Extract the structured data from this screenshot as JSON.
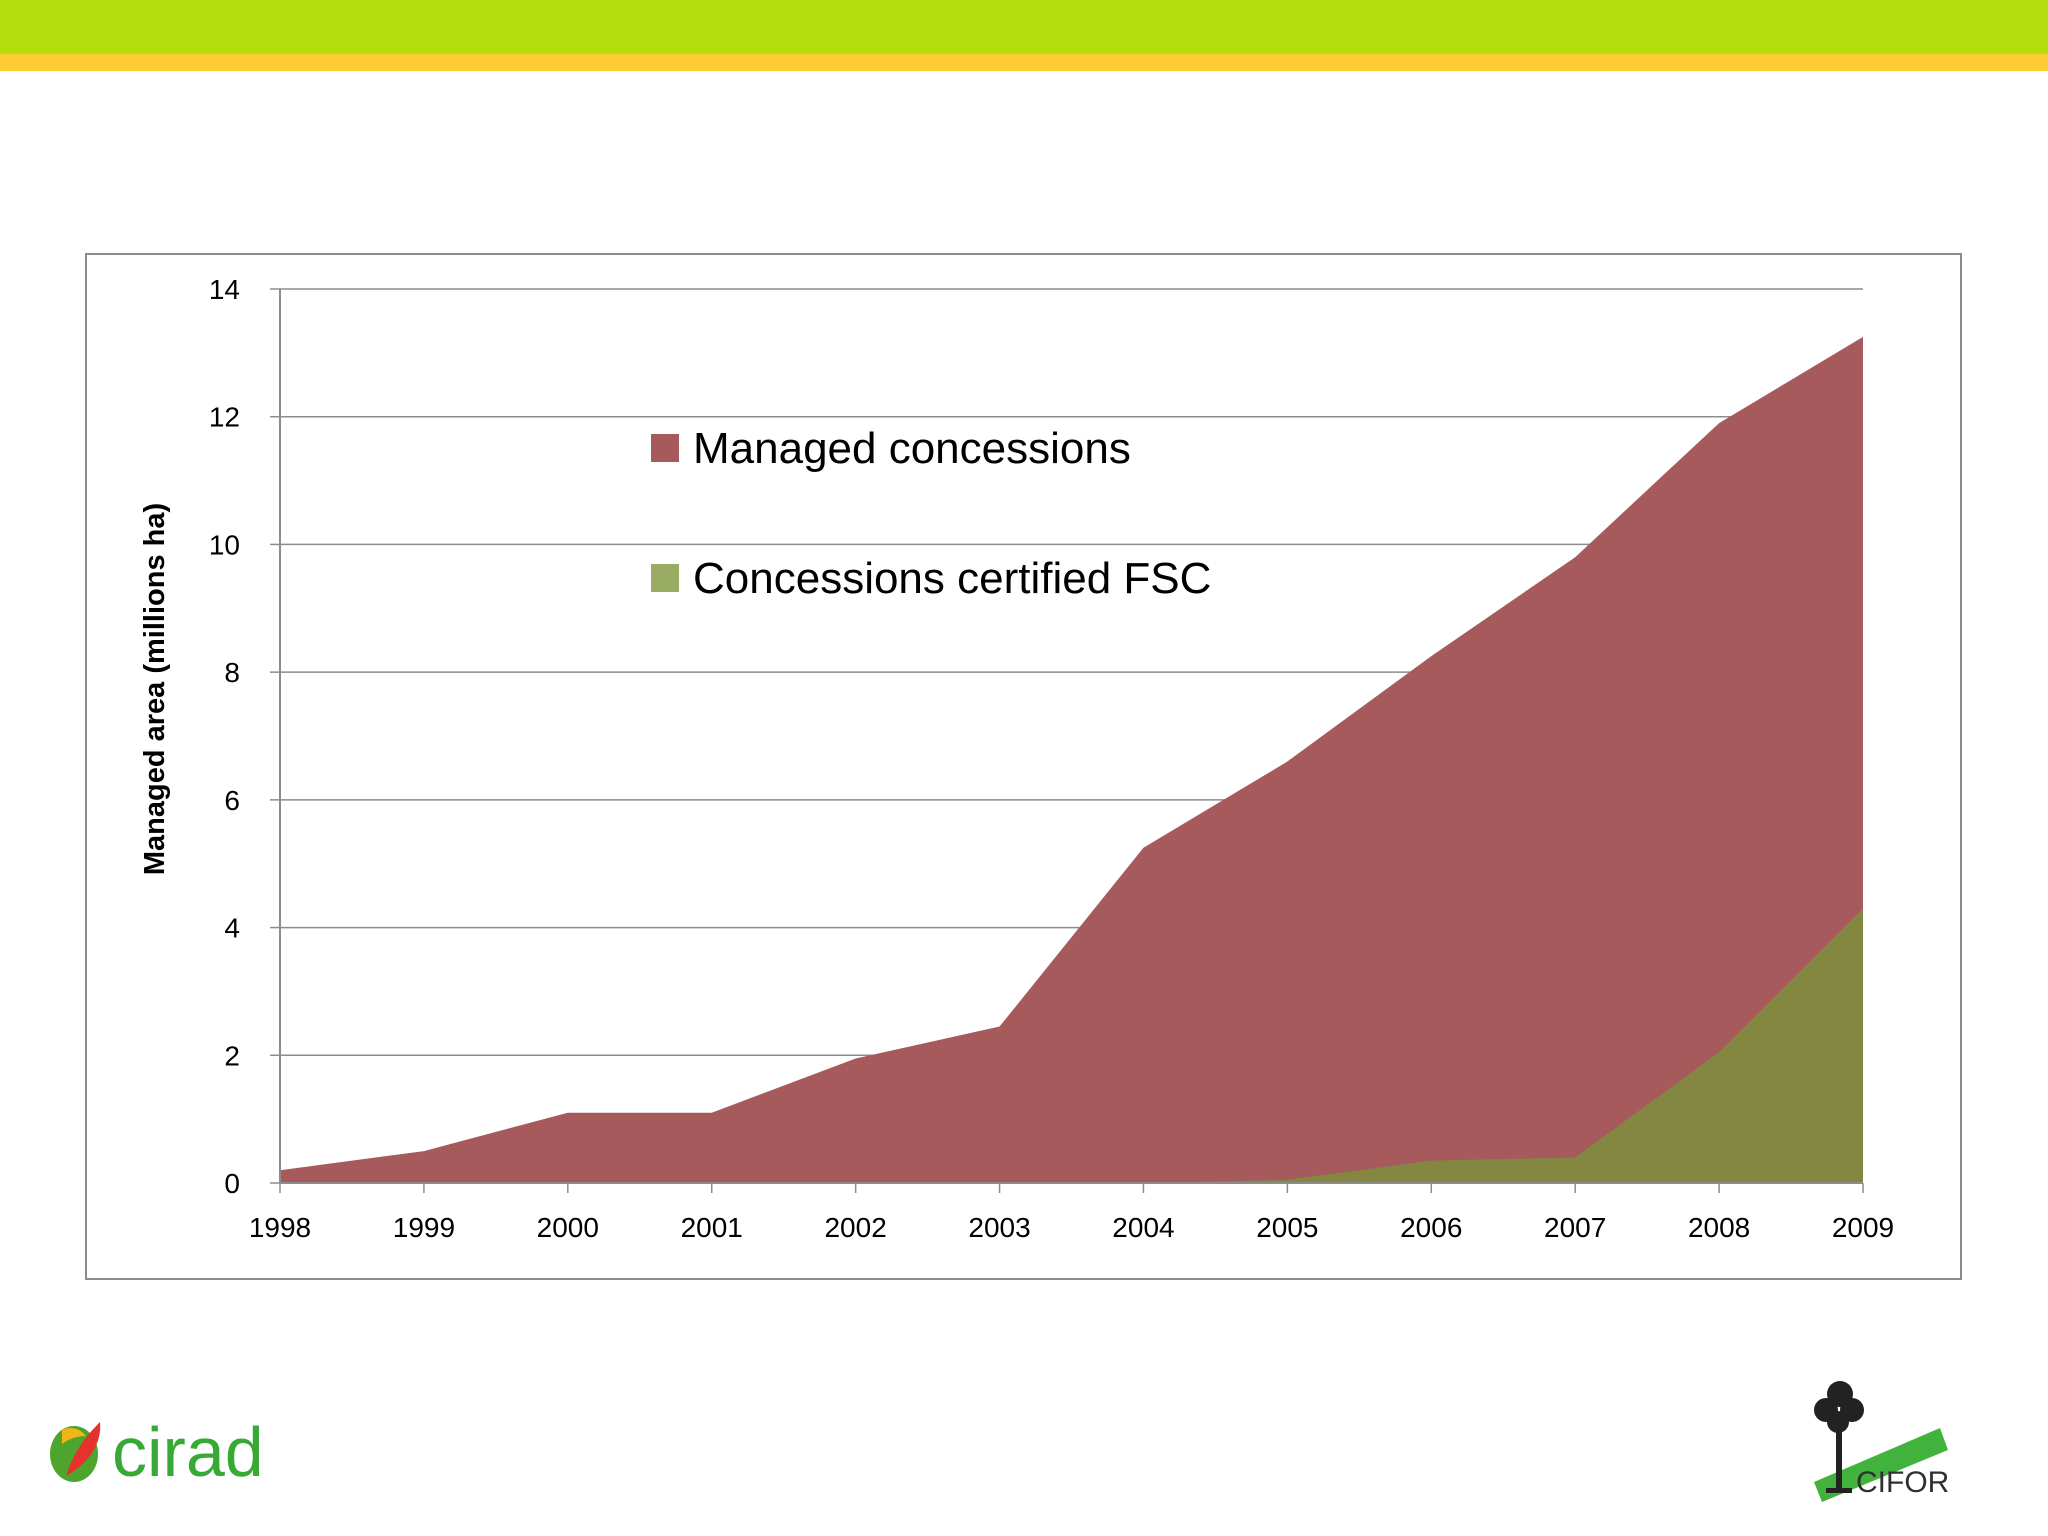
{
  "chart_data": {
    "type": "area",
    "ylabel": "Managed area (millions ha)",
    "xlabel": "",
    "ylim": [
      0,
      14
    ],
    "yticks": [
      0,
      2,
      4,
      6,
      8,
      10,
      12,
      14
    ],
    "grid": true,
    "legend_position": "top-center",
    "categories": [
      "1998",
      "1999",
      "2000",
      "2001",
      "2002",
      "2003",
      "2004",
      "2005",
      "2006",
      "2007",
      "2008",
      "2009"
    ],
    "series": [
      {
        "name": "Managed concessions",
        "color": "#a75a5b",
        "values": [
          0.2,
          0.5,
          1.1,
          1.1,
          1.95,
          2.45,
          5.25,
          6.6,
          8.25,
          9.8,
          11.9,
          13.25
        ]
      },
      {
        "name": "Concessions certified FSC",
        "color": "#838742",
        "legend_color": "#9aab63",
        "values": [
          0,
          0,
          0,
          0,
          0,
          0,
          0,
          0.05,
          0.35,
          0.4,
          2.05,
          4.3
        ]
      }
    ]
  },
  "logos": {
    "left": {
      "text": "cirad",
      "color": "#38a935",
      "icon": "cirad-leaf-icon"
    },
    "right": {
      "text": "CIFOR",
      "color": "#303030",
      "icon": "cifor-tree-icon",
      "brush_color": "#41b33c"
    }
  },
  "theme": {
    "top_band_color": "#b3dd0b",
    "top_stripe_color": "#fecd32",
    "gridline_color": "#8c8c8c"
  }
}
